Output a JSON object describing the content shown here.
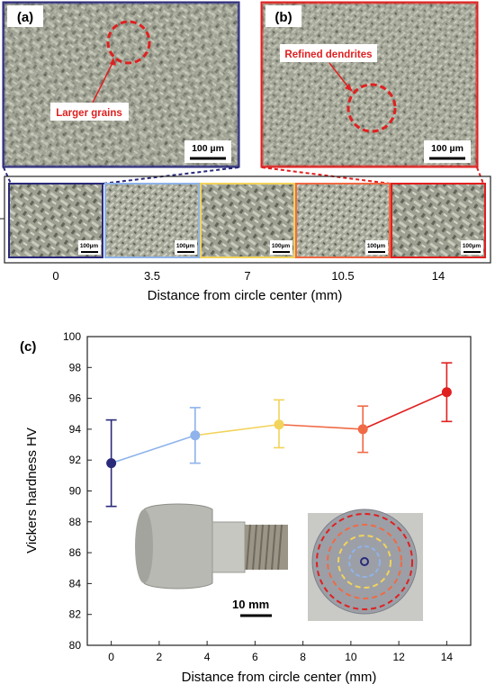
{
  "colors": {
    "series": [
      "#2a2a7a",
      "#8fb3ea",
      "#f2d35b",
      "#f06a45",
      "#e02020"
    ],
    "annotation": "#e02020",
    "panel_a_border": "#2a2a7a",
    "panel_b_border": "#e02020",
    "axis": "#222222"
  },
  "panel_a": {
    "label": "(a)",
    "annotation": "Larger grains",
    "scale_bar": "100 µm"
  },
  "panel_b": {
    "label": "(b)",
    "annotation": "Refined dendrites",
    "scale_bar": "100 µm"
  },
  "strip": {
    "scale_bar": "100µm",
    "positions": [
      "0",
      "3.5",
      "7",
      "10.5",
      "14"
    ],
    "xlabel": "Distance from circle center (mm)"
  },
  "panel_c": {
    "label": "(c)",
    "photo_scale": "10 mm",
    "icons": [
      "threaded-sample-photo-icon",
      "sample-top-view-photo-icon"
    ]
  },
  "chart_data": {
    "type": "scatter",
    "title": "",
    "xlabel": "Distance from circle center (mm)",
    "ylabel": "Vickers hardness HV",
    "xlim": [
      -1,
      15
    ],
    "ylim": [
      80,
      100
    ],
    "x_ticks": [
      "0",
      "2",
      "4",
      "6",
      "8",
      "10",
      "12",
      "14"
    ],
    "y_ticks": [
      "80",
      "82",
      "84",
      "86",
      "88",
      "90",
      "92",
      "94",
      "96",
      "98",
      "100"
    ],
    "grid": false,
    "x": [
      0,
      3.5,
      7,
      10.5,
      14
    ],
    "values": [
      91.8,
      93.6,
      94.3,
      94.0,
      96.4
    ],
    "err_upper": [
      94.6,
      95.4,
      95.9,
      95.5,
      98.3
    ],
    "err_lower": [
      89.0,
      91.8,
      92.8,
      92.5,
      94.5
    ]
  }
}
